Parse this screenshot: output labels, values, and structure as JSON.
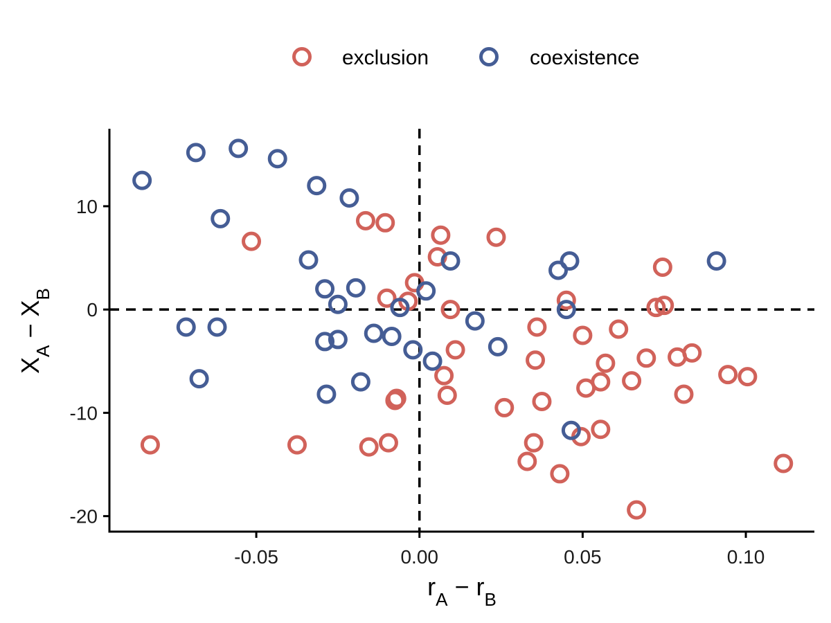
{
  "chart_data": {
    "type": "scatter",
    "xlim": [
      -0.095,
      0.121
    ],
    "ylim": [
      -21.5,
      17.5
    ],
    "x_ticks": [
      {
        "value": -0.05,
        "label": "-0.05"
      },
      {
        "value": 0.0,
        "label": "0.00"
      },
      {
        "value": 0.05,
        "label": "0.05"
      },
      {
        "value": 0.1,
        "label": "0.10"
      }
    ],
    "y_ticks": [
      {
        "value": 10,
        "label": "10"
      },
      {
        "value": 0,
        "label": "0"
      },
      {
        "value": -10,
        "label": "-10"
      },
      {
        "value": -20,
        "label": "-20"
      }
    ],
    "xlabel": {
      "main": "r",
      "sub1": "A",
      "sep": " − ",
      "main2": "r",
      "sub2": "B"
    },
    "ylabel": {
      "main": "X",
      "sub1": "A",
      "sep": " − ",
      "main2": "X",
      "sub2": "B"
    },
    "reference_lines": {
      "x": 0,
      "y": 0,
      "style": "dashed"
    },
    "grid": false,
    "legend_position": "top",
    "series": [
      {
        "name": "exclusion",
        "color": "#D1625A",
        "points": [
          [
            -0.0825,
            -13.1
          ],
          [
            -0.0515,
            6.6
          ],
          [
            -0.0375,
            -13.1
          ],
          [
            -0.0165,
            8.6
          ],
          [
            -0.0155,
            -13.3
          ],
          [
            -0.0105,
            8.4
          ],
          [
            -0.01,
            1.1
          ],
          [
            -0.0095,
            -12.9
          ],
          [
            -0.0075,
            -8.8
          ],
          [
            -0.007,
            -8.6
          ],
          [
            -0.0035,
            0.8
          ],
          [
            -0.0015,
            2.6
          ],
          [
            0.0055,
            5.1
          ],
          [
            0.0065,
            7.2
          ],
          [
            0.0075,
            -6.4
          ],
          [
            0.0085,
            -8.3
          ],
          [
            0.0095,
            0.0
          ],
          [
            0.011,
            -3.9
          ],
          [
            0.0235,
            7.0
          ],
          [
            0.026,
            -9.5
          ],
          [
            0.033,
            -14.7
          ],
          [
            0.035,
            -12.9
          ],
          [
            0.0355,
            -4.9
          ],
          [
            0.036,
            -1.7
          ],
          [
            0.0375,
            -8.9
          ],
          [
            0.043,
            -15.9
          ],
          [
            0.045,
            0.9
          ],
          [
            0.0495,
            -12.3
          ],
          [
            0.05,
            -2.5
          ],
          [
            0.051,
            -7.6
          ],
          [
            0.0555,
            -11.6
          ],
          [
            0.0555,
            -7.0
          ],
          [
            0.057,
            -5.2
          ],
          [
            0.061,
            -1.9
          ],
          [
            0.065,
            -6.9
          ],
          [
            0.0665,
            -19.4
          ],
          [
            0.0695,
            -4.7
          ],
          [
            0.0725,
            0.2
          ],
          [
            0.0745,
            4.1
          ],
          [
            0.075,
            0.4
          ],
          [
            0.079,
            -4.6
          ],
          [
            0.081,
            -8.2
          ],
          [
            0.0835,
            -4.2
          ],
          [
            0.0945,
            -6.3
          ],
          [
            0.1005,
            -6.5
          ],
          [
            0.1115,
            -14.9
          ]
        ]
      },
      {
        "name": "coexistence",
        "color": "#455D95",
        "points": [
          [
            -0.085,
            12.5
          ],
          [
            -0.0715,
            -1.7
          ],
          [
            -0.0685,
            15.2
          ],
          [
            -0.0675,
            -6.7
          ],
          [
            -0.062,
            -1.7
          ],
          [
            -0.061,
            8.8
          ],
          [
            -0.0555,
            15.6
          ],
          [
            -0.0435,
            14.6
          ],
          [
            -0.034,
            4.8
          ],
          [
            -0.0315,
            12.0
          ],
          [
            -0.029,
            2.0
          ],
          [
            -0.029,
            -3.1
          ],
          [
            -0.0285,
            -8.2
          ],
          [
            -0.025,
            0.5
          ],
          [
            -0.025,
            -2.9
          ],
          [
            -0.0215,
            10.8
          ],
          [
            -0.0195,
            2.1
          ],
          [
            -0.018,
            -7.0
          ],
          [
            -0.014,
            -2.3
          ],
          [
            -0.0085,
            -2.6
          ],
          [
            -0.006,
            0.2
          ],
          [
            -0.002,
            -3.9
          ],
          [
            0.002,
            1.8
          ],
          [
            0.004,
            -5.0
          ],
          [
            0.0095,
            4.7
          ],
          [
            0.017,
            -1.1
          ],
          [
            0.024,
            -3.6
          ],
          [
            0.0425,
            3.8
          ],
          [
            0.045,
            0.0
          ],
          [
            0.046,
            4.7
          ],
          [
            0.0465,
            -11.7
          ],
          [
            0.091,
            4.7
          ]
        ]
      }
    ]
  }
}
